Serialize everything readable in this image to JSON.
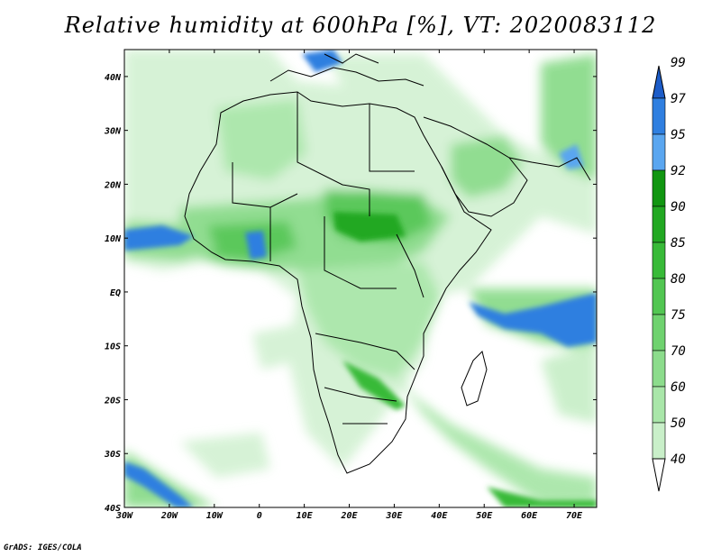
{
  "title": "Relative humidity at 600hPa [%], VT: 2020083112",
  "footer": "GrADS: IGES/COLA",
  "map": {
    "projection": "lat-lon",
    "lon_range": [
      -30,
      75
    ],
    "lat_range": [
      -40,
      45
    ],
    "x_tick_labels": [
      "30W",
      "20W",
      "10W",
      "0",
      "10E",
      "20E",
      "30E",
      "40E",
      "50E",
      "60E",
      "70E"
    ],
    "y_tick_labels": [
      "40N",
      "30N",
      "20N",
      "10N",
      "EQ",
      "10S",
      "20S",
      "30S",
      "40S"
    ],
    "frame_color": "#000000"
  },
  "colorbar": {
    "levels": [
      "40",
      "50",
      "60",
      "70",
      "75",
      "80",
      "85",
      "90",
      "92",
      "95",
      "97",
      "99"
    ],
    "colors": [
      "#e6f7e6",
      "#c9efc9",
      "#a9e6a9",
      "#8cdc8c",
      "#6fd26f",
      "#52c652",
      "#38ba38",
      "#22a822",
      "#119611",
      "#5aa6f0",
      "#2f7fe0",
      "#1c5cc8"
    ]
  },
  "icons": {
    "arrow_top": "triangle-up",
    "arrow_bottom": "triangle-down"
  }
}
